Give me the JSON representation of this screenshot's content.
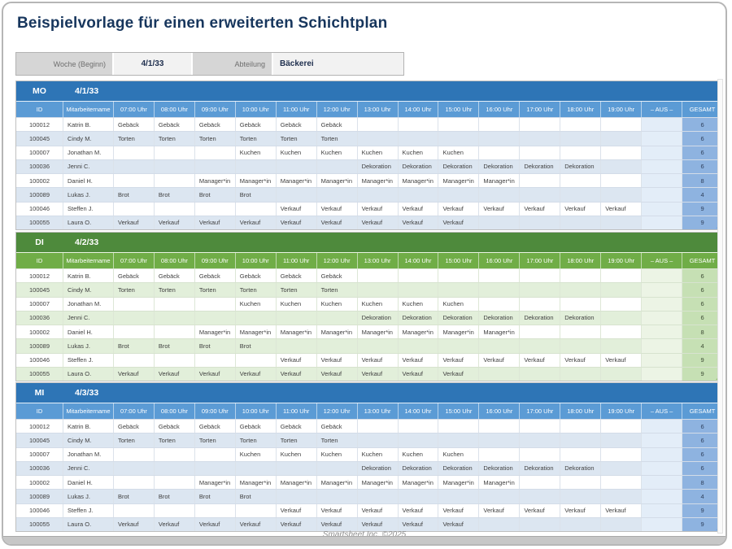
{
  "page": {
    "title": "Beispielvorlage für einen erweiterten Schichtplan",
    "footer": "Smartsheet Inc. ©2025"
  },
  "info_bar": {
    "week_label": "Woche (Beginn)",
    "week_value": "4/1/33",
    "department_label": "Abteilung",
    "department_value": "Bäckerei"
  },
  "schedule": {
    "columns": {
      "id": "ID",
      "name": "Mitarbeitername",
      "hours": [
        "07:00 Uhr",
        "08:00 Uhr",
        "09:00 Uhr",
        "10:00 Uhr",
        "11:00 Uhr",
        "12:00 Uhr",
        "13:00 Uhr",
        "14:00 Uhr",
        "15:00 Uhr",
        "16:00 Uhr",
        "17:00 Uhr",
        "18:00 Uhr",
        "19:00 Uhr"
      ],
      "aus": "– AUS –",
      "total": "GESAMT"
    },
    "days": [
      {
        "code": "MO",
        "date": "4/1/33",
        "theme": "blue"
      },
      {
        "code": "DI",
        "date": "4/2/33",
        "theme": "green"
      },
      {
        "code": "MI",
        "date": "4/3/33",
        "theme": "blue"
      }
    ],
    "rows": [
      {
        "id": "100012",
        "name": "Katrin B.",
        "shifts": [
          "Gebäck",
          "Gebäck",
          "Gebäck",
          "Gebäck",
          "Gebäck",
          "Gebäck",
          "",
          "",
          "",
          "",
          "",
          "",
          ""
        ],
        "aus": "",
        "total": "6"
      },
      {
        "id": "100045",
        "name": "Cindy M.",
        "shifts": [
          "Torten",
          "Torten",
          "Torten",
          "Torten",
          "Torten",
          "Torten",
          "",
          "",
          "",
          "",
          "",
          "",
          ""
        ],
        "aus": "",
        "total": "6"
      },
      {
        "id": "100007",
        "name": "Jonathan M.",
        "shifts": [
          "",
          "",
          "",
          "Kuchen",
          "Kuchen",
          "Kuchen",
          "Kuchen",
          "Kuchen",
          "Kuchen",
          "",
          "",
          "",
          ""
        ],
        "aus": "",
        "total": "6"
      },
      {
        "id": "100036",
        "name": "Jenni C.",
        "shifts": [
          "",
          "",
          "",
          "",
          "",
          "",
          "Dekoration",
          "Dekoration",
          "Dekoration",
          "Dekoration",
          "Dekoration",
          "Dekoration",
          ""
        ],
        "aus": "",
        "total": "6"
      },
      {
        "id": "100002",
        "name": "Daniel H.",
        "shifts": [
          "",
          "",
          "Manager*in",
          "Manager*in",
          "Manager*in",
          "Manager*in",
          "Manager*in",
          "Manager*in",
          "Manager*in",
          "Manager*in",
          "",
          "",
          ""
        ],
        "aus": "",
        "total": "8"
      },
      {
        "id": "100089",
        "name": "Lukas J.",
        "shifts": [
          "Brot",
          "Brot",
          "Brot",
          "Brot",
          "",
          "",
          "",
          "",
          "",
          "",
          "",
          "",
          ""
        ],
        "aus": "",
        "total": "4"
      },
      {
        "id": "100046",
        "name": "Steffen J.",
        "shifts": [
          "",
          "",
          "",
          "",
          "Verkauf",
          "Verkauf",
          "Verkauf",
          "Verkauf",
          "Verkauf",
          "Verkauf",
          "Verkauf",
          "Verkauf",
          "Verkauf"
        ],
        "aus": "",
        "total": "9"
      },
      {
        "id": "100055",
        "name": "Laura O.",
        "shifts": [
          "Verkauf",
          "Verkauf",
          "Verkauf",
          "Verkauf",
          "Verkauf",
          "Verkauf",
          "Verkauf",
          "Verkauf",
          "Verkauf",
          "",
          "",
          "",
          ""
        ],
        "aus": "",
        "total": "9"
      }
    ]
  },
  "colors": {
    "title_text": "#17365d",
    "blue": {
      "bar": "#2e75b6",
      "hdr": "#5b9bd5",
      "alt": "#dce6f1",
      "aus": "#e3edf8",
      "total": "#8eb3e0",
      "totaltext": "#2e3f5c",
      "rowline": "#d3dce8",
      "colline": "#dbe2ea",
      "handle": "#7da7d9"
    },
    "green": {
      "bar": "#4e8a3c",
      "hdr": "#70ad47",
      "alt": "#e2efda",
      "aus": "#ecf4e5",
      "total": "#c6e0b4",
      "totaltext": "#3b4a33",
      "rowline": "#d7e3cf",
      "colline": "#dde7d6",
      "handle": "#93bf73"
    }
  }
}
